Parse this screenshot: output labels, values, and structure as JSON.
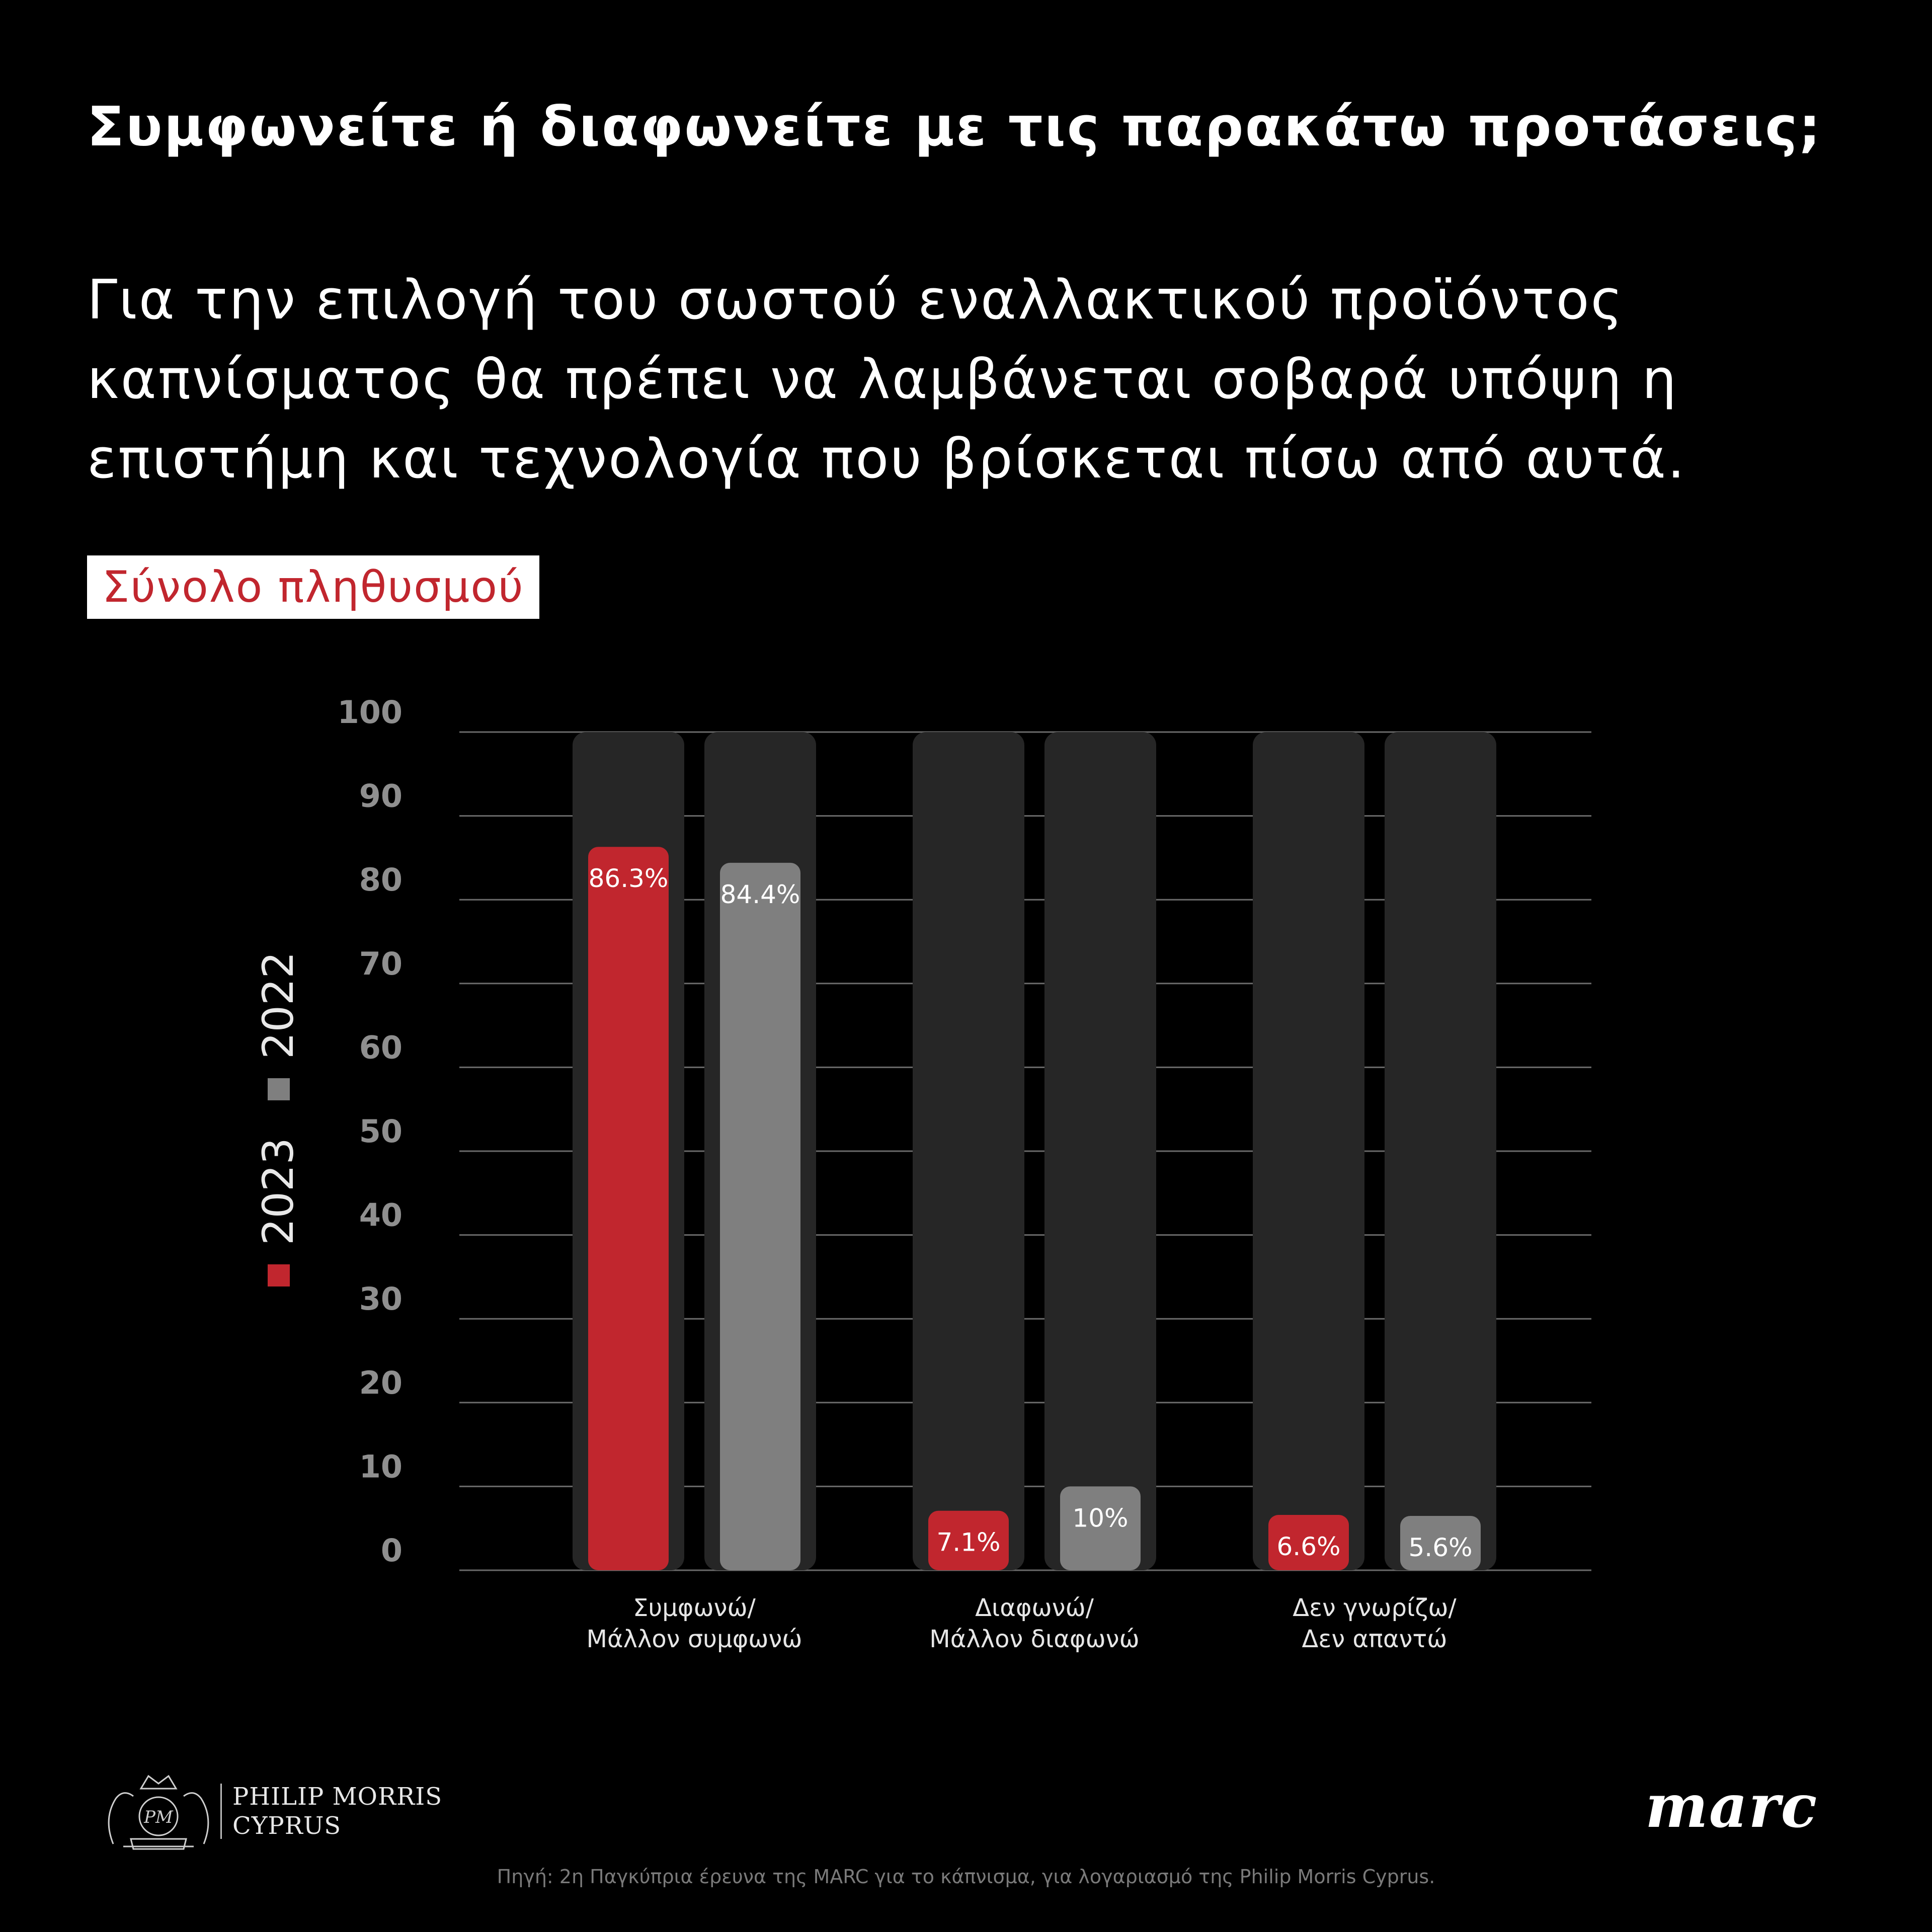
{
  "question": "Συμφωνείτε ή διαφωνείτε με τις παρακάτω προτάσεις;",
  "statement": "Για την επιλογή του σωστού εναλλακτικού προϊόντος\nκαπνίσματος θα πρέπει να λαμβάνεται σοβαρά υπόψη η\nεπιστήμη και τεχνολογία που βρίσκεται πίσω από αυτά.",
  "segment_tag": "Σύνολο πληθυσμού",
  "chart_data": {
    "type": "bar",
    "categories": [
      "Συμφωνώ/\nΜάλλον συμφωνώ",
      "Διαφωνώ/\nΜάλλον διαφωνώ",
      "Δεν γνωρίζω/\nΔεν απαντώ"
    ],
    "series": [
      {
        "name": "2023",
        "values": [
          86.3,
          7.1,
          6.6
        ],
        "labels": [
          "86.3%",
          "7.1%",
          "6.6%"
        ],
        "color": "#c1262e"
      },
      {
        "name": "2022",
        "values": [
          84.4,
          10,
          5.6
        ],
        "labels": [
          "84.4%",
          "10%",
          "5.6%"
        ],
        "color": "#7f7f7f"
      }
    ],
    "yticks": [
      "0",
      "10",
      "20",
      "30",
      "40",
      "50",
      "60",
      "70",
      "80",
      "90",
      "100"
    ],
    "ylim": [
      0,
      100
    ],
    "grid": true,
    "legend_position": "left, vertical",
    "background_bar_color": "#262626"
  },
  "footer": {
    "brand_line1": "PHILIP MORRIS",
    "brand_line2": "CYPRUS",
    "marc_logo": "marc",
    "source": "Πηγή: 2η Παγκύπρια έρευνα της MARC για το κάπνισμα, για λογαριασμό της Philip Morris Cyprus."
  }
}
